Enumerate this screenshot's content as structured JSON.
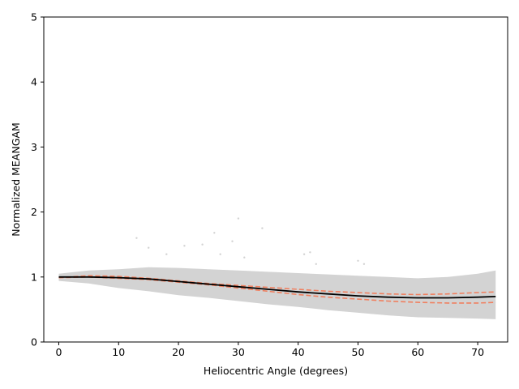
{
  "chart_data": {
    "type": "line",
    "title": "",
    "xlabel": "Heliocentric Angle (degrees)",
    "ylabel": "Normalized MEANGAM",
    "xlim": [
      -2.5,
      75
    ],
    "ylim": [
      0,
      5
    ],
    "xticks": [
      0,
      10,
      20,
      30,
      40,
      50,
      60,
      70
    ],
    "yticks": [
      0,
      1,
      2,
      3,
      4,
      5
    ],
    "grid": false,
    "legend": "none",
    "series": [
      {
        "style": "solid",
        "color": "#000000",
        "x": [
          0,
          5,
          10,
          15,
          20,
          25,
          30,
          35,
          40,
          45,
          50,
          55,
          60,
          65,
          70,
          73
        ],
        "y": [
          1.0,
          1.0,
          0.99,
          0.97,
          0.93,
          0.89,
          0.85,
          0.81,
          0.77,
          0.74,
          0.71,
          0.69,
          0.68,
          0.68,
          0.69,
          0.7
        ]
      },
      {
        "style": "dashed",
        "color": "#f08060",
        "x": [
          0,
          5,
          10,
          15,
          20,
          25,
          30,
          35,
          40,
          45,
          50,
          55,
          60,
          65,
          70,
          73
        ],
        "y": [
          0.99,
          1.02,
          1.01,
          0.98,
          0.94,
          0.9,
          0.87,
          0.84,
          0.81,
          0.78,
          0.76,
          0.74,
          0.73,
          0.74,
          0.76,
          0.77
        ]
      },
      {
        "style": "dashed",
        "color": "#f08060",
        "x": [
          0,
          5,
          10,
          15,
          20,
          25,
          30,
          35,
          40,
          45,
          50,
          55,
          60,
          65,
          70,
          73
        ],
        "y": [
          0.99,
          1.0,
          0.98,
          0.96,
          0.92,
          0.88,
          0.83,
          0.78,
          0.73,
          0.69,
          0.66,
          0.63,
          0.61,
          0.6,
          0.6,
          0.61
        ]
      }
    ],
    "band": {
      "color": "#d3d3d3",
      "x": [
        0,
        5,
        10,
        15,
        20,
        25,
        30,
        35,
        40,
        45,
        50,
        55,
        60,
        65,
        70,
        73
      ],
      "upper": [
        1.05,
        1.1,
        1.12,
        1.15,
        1.14,
        1.12,
        1.1,
        1.08,
        1.06,
        1.04,
        1.02,
        1.0,
        0.98,
        1.0,
        1.05,
        1.1
      ],
      "lower": [
        0.94,
        0.9,
        0.83,
        0.78,
        0.72,
        0.68,
        0.63,
        0.58,
        0.54,
        0.49,
        0.45,
        0.41,
        0.38,
        0.37,
        0.36,
        0.35
      ]
    },
    "outliers": {
      "color": "#d3d3d3",
      "x": [
        13,
        15,
        18,
        21,
        24,
        26,
        27,
        29,
        30,
        31,
        34,
        41,
        42,
        43,
        50,
        51
      ],
      "y": [
        1.6,
        1.45,
        1.35,
        1.48,
        1.5,
        1.68,
        1.35,
        1.55,
        1.9,
        1.3,
        1.75,
        1.35,
        1.38,
        1.2,
        1.25,
        1.2
      ]
    }
  }
}
